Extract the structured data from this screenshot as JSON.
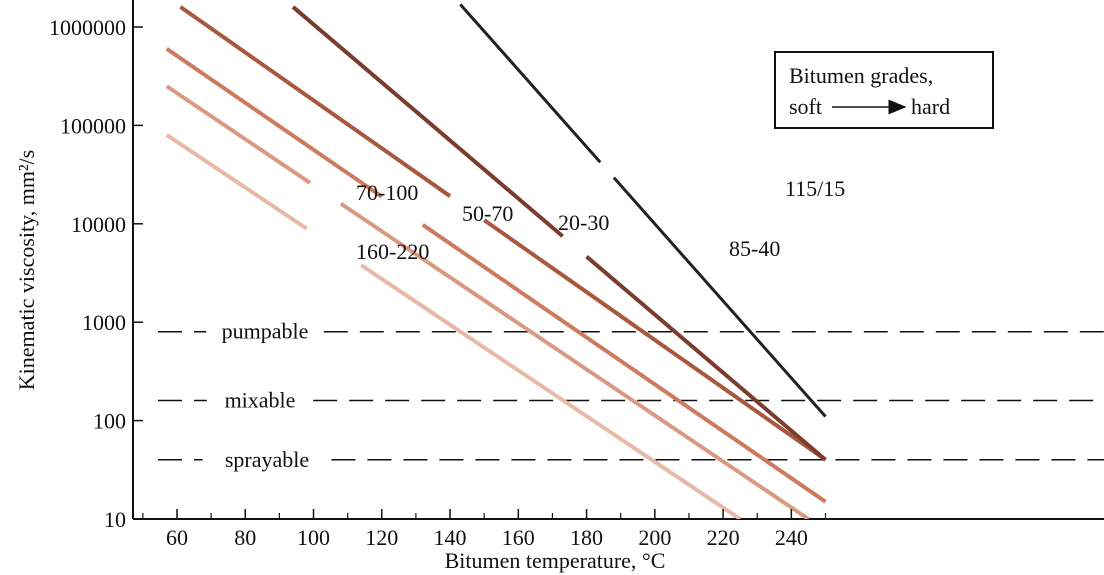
{
  "chart_data": {
    "type": "line",
    "xlabel": "Bitumen temperature, °C",
    "ylabel": "Kinematic viscosity, mm²/s",
    "xlim": [
      53,
      250
    ],
    "ylim": [
      10,
      2000000
    ],
    "yscale": "log",
    "x_ticks": [
      60,
      80,
      100,
      120,
      140,
      160,
      180,
      200,
      220,
      240
    ],
    "y_ticks": [
      10,
      100,
      1000,
      10000,
      100000,
      1000000
    ],
    "y_tick_labels": [
      "10",
      "100",
      "1000",
      "10000",
      "100000",
      "1000000"
    ],
    "grid": false,
    "legend_box": {
      "lines": [
        "Bitumen grades,",
        "soft",
        "hard"
      ]
    },
    "series": [
      {
        "name": "160-220",
        "color": "#e6b9a9",
        "x": [
          57,
          225
        ],
        "y": [
          80000,
          10
        ]
      },
      {
        "name": "70-100",
        "color": "#d99a84",
        "x": [
          57,
          245
        ],
        "y": [
          250000,
          10
        ]
      },
      {
        "name": "50-70",
        "color": "#cc7a60",
        "x": [
          57,
          250
        ],
        "y": [
          600000,
          15
        ]
      },
      {
        "name": "20-30",
        "color": "#a8583f",
        "x": [
          61,
          250
        ],
        "y": [
          1600000,
          40
        ]
      },
      {
        "name": "85-40",
        "color": "#7a3c2c",
        "x": [
          94,
          250
        ],
        "y": [
          1600000,
          40
        ]
      },
      {
        "name": "115/15",
        "color": "#222222",
        "x": [
          143,
          250
        ],
        "y": [
          1700000,
          110
        ]
      }
    ],
    "annotations": [
      {
        "label": "pumpable",
        "y": 800
      },
      {
        "label": "mixable",
        "y": 160
      },
      {
        "label": "sprayable",
        "y": 40
      }
    ]
  }
}
